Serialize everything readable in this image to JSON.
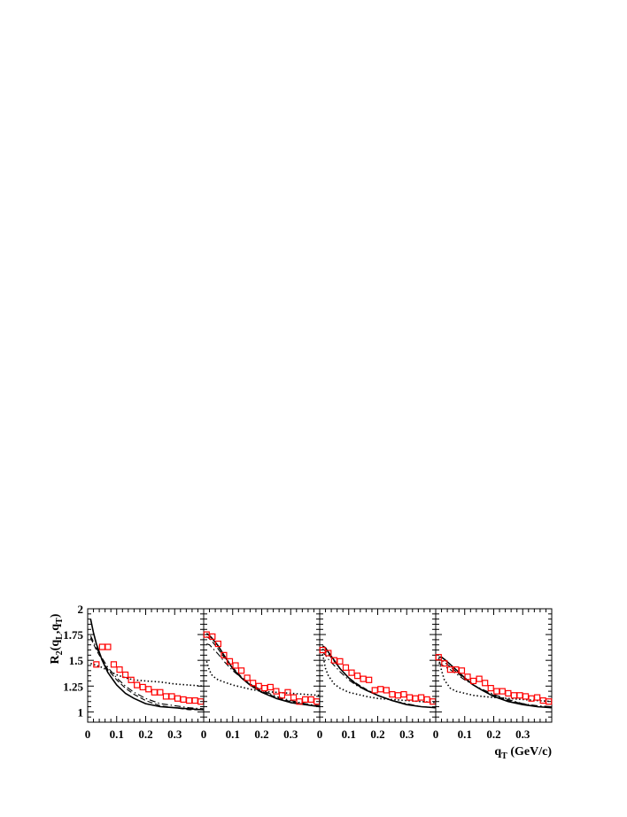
{
  "chart_data": {
    "type": "scatter",
    "ylabel_main": "R",
    "ylabel_sub": "2",
    "ylabel_args_open": "(q",
    "ylabel_args_sub1": "L",
    "ylabel_args_mid": ",q",
    "ylabel_args_sub2": "T",
    "ylabel_args_close": ")",
    "xlabel_main": "q",
    "xlabel_sub": "T",
    "xlabel_unit": " (GeV/c)",
    "xlim": [
      0,
      0.4
    ],
    "ylim": [
      0.9,
      2.0
    ],
    "xticks": [
      0,
      0.1,
      0.2,
      0.3
    ],
    "xtick_labels": [
      "0",
      "0.1",
      "0.2",
      "0.3"
    ],
    "yticks": [
      1,
      1.25,
      1.5,
      1.75,
      2
    ],
    "ytick_labels": [
      "1",
      "1.25",
      "1.5",
      "1.75",
      "2"
    ],
    "grid": false,
    "marker_color": "#ff0000",
    "line_color": "#000000",
    "panels": [
      {
        "data": {
          "x": [
            0.03,
            0.05,
            0.07,
            0.09,
            0.11,
            0.13,
            0.15,
            0.17,
            0.19,
            0.21,
            0.23,
            0.25,
            0.27,
            0.29,
            0.31,
            0.33,
            0.35,
            0.37,
            0.39
          ],
          "y": [
            1.46,
            1.63,
            1.63,
            1.46,
            1.41,
            1.36,
            1.31,
            1.26,
            1.24,
            1.22,
            1.19,
            1.19,
            1.15,
            1.15,
            1.13,
            1.12,
            1.11,
            1.11,
            1.1
          ]
        },
        "solid": {
          "x": [
            0.01,
            0.02,
            0.03,
            0.05,
            0.07,
            0.1,
            0.13,
            0.16,
            0.2,
            0.25,
            0.3,
            0.35,
            0.4
          ],
          "y": [
            1.9,
            1.77,
            1.66,
            1.5,
            1.38,
            1.26,
            1.18,
            1.13,
            1.08,
            1.05,
            1.04,
            1.03,
            1.02
          ]
        },
        "dashed": {
          "x": [
            0.01,
            0.02,
            0.03,
            0.05,
            0.07,
            0.1,
            0.13,
            0.16,
            0.2,
            0.25,
            0.3,
            0.35,
            0.4
          ],
          "y": [
            1.72,
            1.66,
            1.6,
            1.5,
            1.41,
            1.31,
            1.23,
            1.17,
            1.11,
            1.06,
            1.04,
            1.02,
            1.02
          ]
        },
        "dashdot": {
          "x": [
            0.01,
            0.02,
            0.03,
            0.05,
            0.07,
            0.1,
            0.13,
            0.16,
            0.2,
            0.25,
            0.3,
            0.35,
            0.4
          ],
          "y": [
            1.74,
            1.68,
            1.62,
            1.52,
            1.43,
            1.33,
            1.25,
            1.19,
            1.13,
            1.08,
            1.06,
            1.04,
            1.03
          ]
        },
        "dotted": {
          "x": [
            0.01,
            0.02,
            0.03,
            0.05,
            0.07,
            0.1,
            0.13,
            0.16,
            0.2,
            0.25,
            0.3,
            0.35,
            0.4
          ],
          "y": [
            1.47,
            1.46,
            1.45,
            1.43,
            1.4,
            1.36,
            1.33,
            1.31,
            1.3,
            1.29,
            1.27,
            1.26,
            1.25
          ]
        }
      },
      {
        "data": {
          "x": [
            0.01,
            0.03,
            0.05,
            0.07,
            0.09,
            0.11,
            0.13,
            0.15,
            0.17,
            0.19,
            0.21,
            0.23,
            0.25,
            0.27,
            0.29,
            0.31,
            0.33,
            0.35,
            0.37,
            0.39
          ],
          "y": [
            1.75,
            1.73,
            1.66,
            1.55,
            1.49,
            1.45,
            1.4,
            1.33,
            1.28,
            1.25,
            1.23,
            1.24,
            1.2,
            1.16,
            1.19,
            1.14,
            1.1,
            1.12,
            1.12,
            1.1
          ]
        },
        "solid": {
          "x": [
            0.01,
            0.02,
            0.03,
            0.05,
            0.07,
            0.1,
            0.13,
            0.16,
            0.2,
            0.25,
            0.3,
            0.35,
            0.4
          ],
          "y": [
            1.76,
            1.74,
            1.71,
            1.64,
            1.55,
            1.42,
            1.33,
            1.26,
            1.19,
            1.13,
            1.09,
            1.07,
            1.05
          ]
        },
        "dashed": {
          "x": [
            0.01,
            0.02,
            0.03,
            0.05,
            0.07,
            0.1,
            0.13,
            0.16,
            0.2,
            0.25,
            0.3,
            0.35,
            0.4
          ],
          "y": [
            1.73,
            1.71,
            1.68,
            1.61,
            1.53,
            1.43,
            1.34,
            1.27,
            1.2,
            1.14,
            1.1,
            1.07,
            1.05
          ]
        },
        "dashdot": {
          "x": [
            0.01,
            0.02,
            0.03,
            0.05,
            0.07,
            0.1,
            0.13,
            0.16,
            0.2,
            0.25,
            0.3,
            0.35,
            0.4
          ],
          "y": [
            1.66,
            1.65,
            1.62,
            1.56,
            1.49,
            1.4,
            1.33,
            1.27,
            1.21,
            1.15,
            1.11,
            1.08,
            1.06
          ]
        },
        "dotted": {
          "x": [
            0.01,
            0.02,
            0.03,
            0.05,
            0.07,
            0.1,
            0.13,
            0.16,
            0.2,
            0.25,
            0.3,
            0.35,
            0.4
          ],
          "y": [
            1.49,
            1.4,
            1.35,
            1.31,
            1.29,
            1.26,
            1.24,
            1.22,
            1.2,
            1.19,
            1.18,
            1.17,
            1.16
          ]
        }
      },
      {
        "data": {
          "x": [
            0.01,
            0.03,
            0.05,
            0.07,
            0.09,
            0.11,
            0.13,
            0.15,
            0.17,
            0.19,
            0.21,
            0.23,
            0.25,
            0.27,
            0.29,
            0.31,
            0.33,
            0.35,
            0.37,
            0.39
          ],
          "y": [
            1.6,
            1.57,
            1.5,
            1.49,
            1.43,
            1.38,
            1.35,
            1.32,
            1.31,
            1.21,
            1.22,
            1.21,
            1.17,
            1.16,
            1.17,
            1.14,
            1.13,
            1.14,
            1.12,
            1.1
          ]
        },
        "solid": {
          "x": [
            0.01,
            0.02,
            0.03,
            0.05,
            0.07,
            0.1,
            0.13,
            0.16,
            0.2,
            0.25,
            0.3,
            0.35,
            0.4
          ],
          "y": [
            1.64,
            1.62,
            1.58,
            1.5,
            1.42,
            1.33,
            1.26,
            1.21,
            1.16,
            1.11,
            1.07,
            1.05,
            1.04
          ]
        },
        "dashed": {
          "x": [
            0.01,
            0.02,
            0.03,
            0.05,
            0.07,
            0.1,
            0.13,
            0.16,
            0.2,
            0.25,
            0.3,
            0.35,
            0.4
          ],
          "y": [
            1.61,
            1.59,
            1.56,
            1.49,
            1.42,
            1.33,
            1.27,
            1.22,
            1.16,
            1.11,
            1.07,
            1.05,
            1.04
          ]
        },
        "dashdot": {
          "x": [
            0.01,
            0.02,
            0.03,
            0.05,
            0.07,
            0.1,
            0.13,
            0.16,
            0.2,
            0.25,
            0.3,
            0.35,
            0.4
          ],
          "y": [
            1.58,
            1.55,
            1.51,
            1.45,
            1.39,
            1.31,
            1.25,
            1.21,
            1.16,
            1.11,
            1.08,
            1.05,
            1.04
          ]
        },
        "dotted": {
          "x": [
            0.01,
            0.02,
            0.03,
            0.05,
            0.07,
            0.1,
            0.13,
            0.16,
            0.2,
            0.25,
            0.3,
            0.35,
            0.4
          ],
          "y": [
            1.56,
            1.42,
            1.35,
            1.27,
            1.23,
            1.19,
            1.17,
            1.15,
            1.13,
            1.12,
            1.11,
            1.1,
            1.09
          ]
        }
      },
      {
        "data": {
          "x": [
            0.01,
            0.03,
            0.05,
            0.07,
            0.09,
            0.11,
            0.13,
            0.15,
            0.17,
            0.19,
            0.21,
            0.23,
            0.25,
            0.27,
            0.29,
            0.31,
            0.33,
            0.35,
            0.37,
            0.39
          ],
          "y": [
            1.53,
            1.47,
            1.41,
            1.41,
            1.4,
            1.34,
            1.3,
            1.32,
            1.28,
            1.23,
            1.2,
            1.2,
            1.18,
            1.16,
            1.16,
            1.15,
            1.13,
            1.14,
            1.11,
            1.1
          ]
        },
        "solid": {
          "x": [
            0.01,
            0.02,
            0.03,
            0.05,
            0.07,
            0.1,
            0.13,
            0.16,
            0.2,
            0.25,
            0.3,
            0.35,
            0.4
          ],
          "y": [
            1.53,
            1.53,
            1.51,
            1.46,
            1.41,
            1.33,
            1.26,
            1.21,
            1.15,
            1.1,
            1.07,
            1.05,
            1.04
          ]
        },
        "dashed": {
          "x": [
            0.01,
            0.02,
            0.03,
            0.05,
            0.07,
            0.1,
            0.13,
            0.16,
            0.2,
            0.25,
            0.3,
            0.35,
            0.4
          ],
          "y": [
            1.51,
            1.5,
            1.48,
            1.44,
            1.39,
            1.32,
            1.26,
            1.21,
            1.16,
            1.11,
            1.08,
            1.05,
            1.04
          ]
        },
        "dashdot": {
          "x": [
            0.01,
            0.02,
            0.03,
            0.05,
            0.07,
            0.1,
            0.13,
            0.16,
            0.2,
            0.25,
            0.3,
            0.35,
            0.4
          ],
          "y": [
            1.47,
            1.46,
            1.44,
            1.41,
            1.37,
            1.31,
            1.26,
            1.22,
            1.17,
            1.12,
            1.08,
            1.06,
            1.05
          ]
        },
        "dotted": {
          "x": [
            0.01,
            0.02,
            0.03,
            0.05,
            0.07,
            0.1,
            0.13,
            0.16,
            0.2,
            0.25,
            0.3,
            0.35,
            0.4
          ],
          "y": [
            1.52,
            1.4,
            1.31,
            1.23,
            1.2,
            1.18,
            1.16,
            1.15,
            1.14,
            1.13,
            1.12,
            1.11,
            1.1
          ]
        }
      }
    ]
  }
}
